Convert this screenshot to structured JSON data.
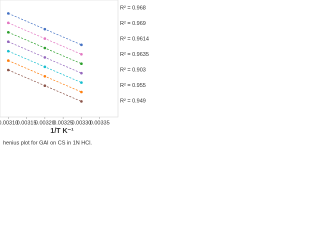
{
  "chart_data": {
    "type": "line",
    "caption": "henius plot for GAI on CS in 1N HCl.",
    "x_label": "1/T  K⁻¹",
    "x": [
      0.0031,
      0.0032,
      0.0033
    ],
    "series": [
      {
        "color": "#4472c4",
        "values": [
          1.7,
          1.2,
          0.7
        ]
      },
      {
        "color": "#e377c2",
        "values": [
          1.4,
          0.9,
          0.4
        ]
      },
      {
        "color": "#2ca02c",
        "values": [
          1.1,
          0.6,
          0.1
        ]
      },
      {
        "color": "#9467bd",
        "values": [
          0.8,
          0.3,
          -0.2
        ]
      },
      {
        "color": "#17becf",
        "values": [
          0.5,
          0.0,
          -0.5
        ]
      },
      {
        "color": "#ff7f0e",
        "values": [
          0.2,
          -0.3,
          -0.8
        ]
      },
      {
        "color": "#8c564b",
        "values": [
          -0.1,
          -0.6,
          -1.1
        ]
      }
    ],
    "annotations": [
      "R² = 0.968",
      "R² = 0.969",
      "R² = 0.9614",
      "R² = 0.9635",
      "R² = 0.903",
      "R² = 0.955",
      "R² = 0.949"
    ],
    "xlim": [
      0.00305,
      0.0034
    ],
    "ylim": [
      -1.5,
      2
    ],
    "xticks": [
      {
        "value": 0.0031,
        "label": "0.00310"
      },
      0.00315,
      {
        "value": 0.0032,
        "label": "0.00320"
      },
      0.00325,
      {
        "value": 0.0033,
        "label": "0.00330"
      },
      0.00335
    ],
    "grid": false
  }
}
